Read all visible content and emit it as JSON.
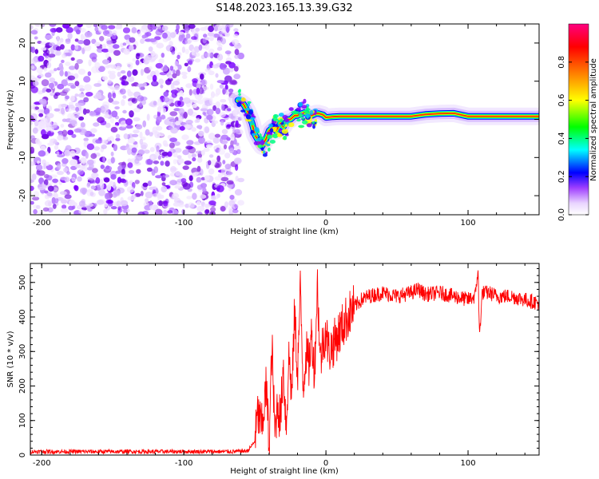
{
  "title": "S148.2023.165.13.39.G32",
  "chart_data": [
    {
      "type": "heatmap",
      "xlabel": "Height of straight line (km)",
      "ylabel": "Frequency (Hz)",
      "xlim": [
        -208,
        150
      ],
      "ylim": [
        -25,
        25
      ],
      "xticks": [
        -200,
        -100,
        0,
        100
      ],
      "xtick_labels": [
        "-200",
        "-100",
        "0",
        "100"
      ],
      "yticks": [
        -20,
        -10,
        0,
        10,
        20
      ],
      "ytick_labels": [
        "-20",
        "-10",
        "0",
        "10",
        "20"
      ],
      "noise_region_x": [
        -208,
        -62
      ],
      "signal_trace": {
        "x": [
          -62,
          -58,
          -55,
          -52,
          -50,
          -47,
          -45,
          -42,
          -40,
          -37,
          -35,
          -32,
          -30,
          -27,
          -25,
          -22,
          -20,
          -17,
          -15,
          -12,
          -10,
          -7,
          -5,
          -2,
          0,
          5,
          10,
          20,
          30,
          40,
          50,
          60,
          70,
          80,
          90,
          100,
          110,
          120,
          130,
          140,
          150
        ],
        "y": [
          5,
          4,
          2,
          -1,
          -4,
          -6,
          -7,
          -5,
          -3,
          -2,
          -3,
          -1,
          -2,
          0,
          0,
          1,
          1,
          1.5,
          1.8,
          1.2,
          1,
          1.5,
          1.5,
          1.2,
          0.5,
          0.7,
          0.8,
          0.8,
          0.8,
          0.8,
          0.8,
          0.8,
          1.3,
          1.5,
          1.6,
          0.8,
          0.8,
          0.8,
          0.8,
          0.8,
          0.8
        ]
      },
      "colorbar": {
        "label": "Normalized spectral amplitude",
        "range": [
          0,
          1
        ],
        "ticks": [
          0.0,
          0.2,
          0.4,
          0.6,
          0.8
        ],
        "tick_labels": [
          "0.0",
          "0.2",
          "0.4",
          "0.6",
          "0.8"
        ],
        "colors": [
          "#ffffff",
          "#e9d5ff",
          "#8000ff",
          "#0000ff",
          "#00ffff",
          "#00ff00",
          "#ffff00",
          "#ff8000",
          "#ff0000",
          "#ff0080"
        ]
      }
    },
    {
      "type": "line",
      "xlabel": "Height of straight line (km)",
      "ylabel": "SNR (10 * v/v)",
      "xlim": [
        -208,
        150
      ],
      "ylim": [
        0,
        555
      ],
      "xticks": [
        -200,
        -100,
        0,
        100
      ],
      "xtick_labels": [
        "-200",
        "-100",
        "0",
        "100"
      ],
      "yticks": [
        0,
        100,
        200,
        300,
        400,
        500
      ],
      "ytick_labels": [
        "0",
        "100",
        "200",
        "300",
        "400",
        "500"
      ],
      "color": "#ff0000",
      "series": [
        {
          "name": "SNR",
          "x": [
            -208,
            -160,
            -120,
            -90,
            -65,
            -55,
            -50,
            -48,
            -45,
            -42,
            -40,
            -38,
            -36,
            -34,
            -32,
            -30,
            -28,
            -26,
            -24,
            -22,
            -20,
            -18,
            -16,
            -14,
            -12,
            -10,
            -8,
            -6,
            -4,
            -2,
            0,
            2,
            5,
            10,
            15,
            20,
            25,
            30,
            40,
            50,
            60,
            65,
            70,
            80,
            90,
            100,
            105,
            107,
            108,
            110,
            115,
            120,
            130,
            140,
            150
          ],
          "y": [
            10,
            10,
            10,
            10,
            10,
            12,
            40,
            120,
            80,
            200,
            30,
            320,
            60,
            150,
            100,
            260,
            80,
            290,
            170,
            420,
            230,
            480,
            200,
            300,
            260,
            350,
            240,
            500,
            270,
            330,
            360,
            300,
            320,
            360,
            400,
            430,
            450,
            460,
            470,
            460,
            470,
            480,
            465,
            470,
            460,
            450,
            460,
            540,
            340,
            470,
            470,
            460,
            460,
            450,
            440
          ]
        }
      ]
    }
  ]
}
